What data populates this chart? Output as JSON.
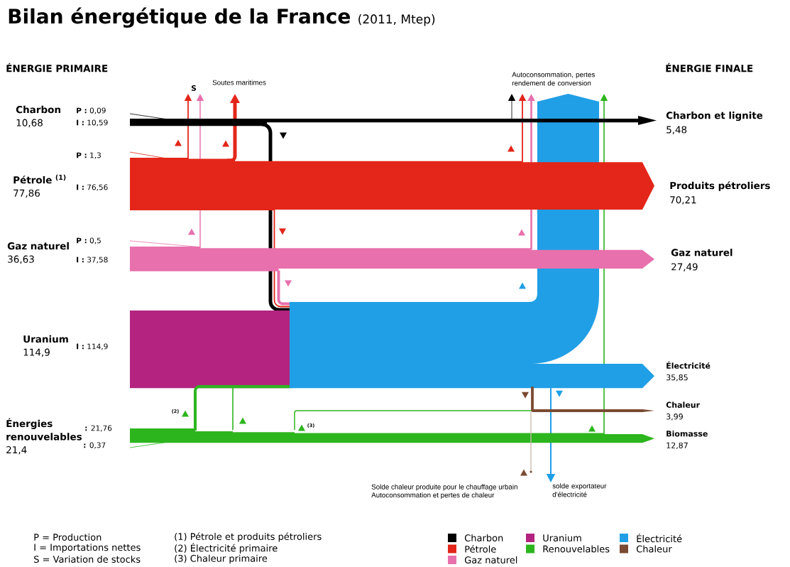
{
  "chart_data": {
    "type": "other",
    "title": "Bilan énergétique de la France",
    "subtitle": "(2011, Mtep)",
    "categories": [
      "ÉNERGIE PRIMAIRE",
      "ÉNERGIE FINALE"
    ],
    "series": [
      {
        "name": "Charbon",
        "color": "#000000",
        "values": [
          10.68,
          5.48
        ],
        "value_labels": [
          "10,68",
          "5,48"
        ]
      },
      {
        "name": "Pétrole",
        "color": "#e32619",
        "values": [
          77.86,
          70.21
        ],
        "value_labels": [
          "77,86",
          "70,21"
        ]
      },
      {
        "name": "Gaz naturel",
        "color": "#e870ad",
        "values": [
          36.63,
          27.49
        ],
        "value_labels": [
          "36,63",
          "27,49"
        ]
      },
      {
        "name": "Uranium",
        "color": "#b3237f",
        "values": [
          114.9,
          null
        ],
        "value_labels": [
          "114,9",
          null
        ]
      },
      {
        "name": "Renouvelables",
        "color": "#2db51e",
        "values": [
          21.4,
          12.87
        ],
        "value_labels": [
          "21,4",
          "12,87"
        ]
      },
      {
        "name": "Électricité",
        "color": "#209fe6",
        "values": [
          null,
          35.85
        ],
        "value_labels": [
          null,
          "35,85"
        ]
      },
      {
        "name": "Chaleur",
        "color": "#7a4a32",
        "values": [
          null,
          3.99
        ],
        "value_labels": [
          null,
          "3,99"
        ]
      }
    ],
    "legend": "bottom",
    "annotations": [
      "Charbon",
      "Pétrole $^{(1)}$",
      "Gaz naturel",
      "Uranium",
      "Énergies renouvelables",
      "Charbon et lignite",
      "Produits pétroliers",
      "Gaz naturel",
      "Électricité",
      "Chaleur",
      "Biomasse",
      "**P :** 0,09",
      "**I :** 10,59",
      "**P :** 1,3",
      "**I :** 76,56",
      "**P :** 0,5",
      "**I :** 37,58",
      "**I :** 114,9",
      "**:** 21,76",
      "**:** 0,37",
      "S",
      "Soutes maritimes",
      "Autoconsommation, pertes rendement de conversion",
      "(2)",
      "(3)",
      "Solde chaleur produite pour le chauffage urbain",
      "Autoconsommation et pertes de chaleur",
      "solde exportateur d'électricité",
      "P = Production",
      "I = Importations nettes",
      "S = Variation de stocks",
      "(1) Pétrole et produits pétroliers",
      "(2) Électricité primaire",
      "(3) Chaleur primaire"
    ]
  }
}
